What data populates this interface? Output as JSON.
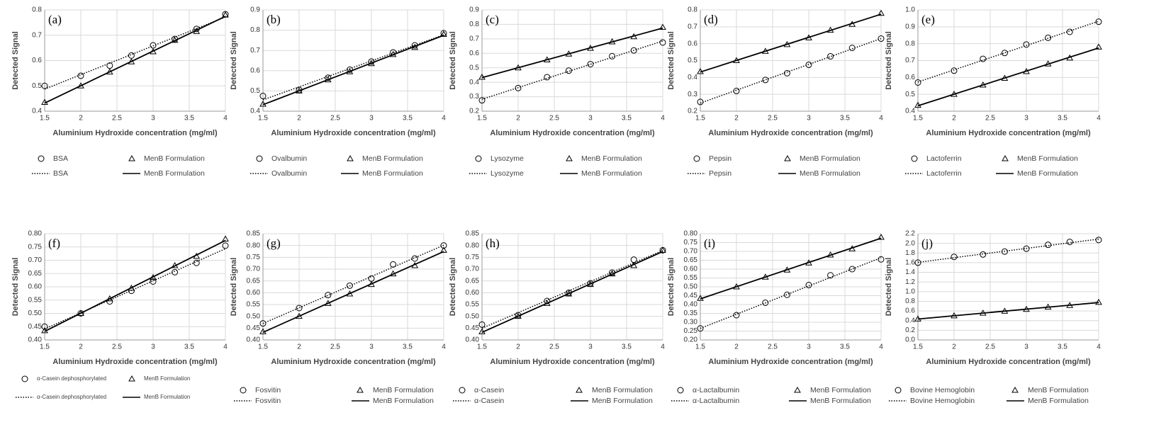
{
  "chart_data": [
    {
      "type": "line",
      "label": "(a)",
      "x_label": "Aluminium Hydroxide concentration (mg/ml)",
      "y_label": "Detected Signal",
      "x": [
        1.5,
        2,
        2.4,
        2.7,
        3,
        3.3,
        3.6,
        4
      ],
      "xlim": [
        1.5,
        4
      ],
      "xticks": [
        1.5,
        2,
        2.5,
        3,
        3.5,
        4
      ],
      "ylim": [
        0.4,
        0.8
      ],
      "yticks": [
        0.4,
        0.5,
        0.6,
        0.7,
        0.8
      ],
      "grid": true,
      "series": [
        {
          "name": "BSA",
          "color": "#000000",
          "marker": "circle",
          "trendline": "dotted",
          "values": [
            0.5,
            0.54,
            0.58,
            0.62,
            0.66,
            0.685,
            0.725,
            0.783
          ]
        },
        {
          "name": "MenB Formulation",
          "color": "#000000",
          "marker": "triangle",
          "trendline": "solid",
          "values": [
            0.435,
            0.5,
            0.555,
            0.595,
            0.635,
            0.68,
            0.715,
            0.78
          ]
        }
      ]
    },
    {
      "type": "line",
      "label": "(b)",
      "x_label": "Aluminium Hydroxide concentration (mg/ml)",
      "y_label": "Detected Signal",
      "x": [
        1.5,
        2,
        2.4,
        2.7,
        3,
        3.3,
        3.6,
        4
      ],
      "xlim": [
        1.5,
        4
      ],
      "xticks": [
        1.5,
        2,
        2.5,
        3,
        3.5,
        4
      ],
      "ylim": [
        0.4,
        0.9
      ],
      "yticks": [
        0.4,
        0.5,
        0.6,
        0.7,
        0.8,
        0.9
      ],
      "grid": true,
      "series": [
        {
          "name": "Ovalbumin",
          "color": "#000000",
          "marker": "circle",
          "trendline": "dotted",
          "values": [
            0.475,
            0.505,
            0.565,
            0.605,
            0.645,
            0.69,
            0.725,
            0.785
          ]
        },
        {
          "name": "MenB Formulation",
          "color": "#000000",
          "marker": "triangle",
          "trendline": "solid",
          "values": [
            0.435,
            0.5,
            0.555,
            0.595,
            0.635,
            0.68,
            0.715,
            0.78
          ]
        }
      ]
    },
    {
      "type": "line",
      "label": "(c)",
      "x_label": "Aluminium Hydroxide concentration (mg/ml)",
      "y_label": "Detected Signal",
      "x": [
        1.5,
        2,
        2.4,
        2.7,
        3,
        3.3,
        3.6,
        4
      ],
      "xlim": [
        1.5,
        4
      ],
      "xticks": [
        1.5,
        2,
        2.5,
        3,
        3.5,
        4
      ],
      "ylim": [
        0.2,
        0.9
      ],
      "yticks": [
        0.2,
        0.3,
        0.4,
        0.5,
        0.6,
        0.7,
        0.8,
        0.9
      ],
      "grid": true,
      "series": [
        {
          "name": "Lysozyme",
          "color": "#000000",
          "marker": "circle",
          "trendline": "dotted",
          "values": [
            0.275,
            0.36,
            0.435,
            0.48,
            0.525,
            0.58,
            0.62,
            0.675
          ]
        },
        {
          "name": "MenB Formulation",
          "color": "#000000",
          "marker": "triangle",
          "trendline": "solid",
          "values": [
            0.435,
            0.5,
            0.555,
            0.595,
            0.635,
            0.68,
            0.715,
            0.78
          ]
        }
      ]
    },
    {
      "type": "line",
      "label": "(d)",
      "x_label": "Aluminium Hydroxide concentration (mg/ml)",
      "y_label": "Detected Signal",
      "x": [
        1.5,
        2,
        2.4,
        2.7,
        3,
        3.3,
        3.6,
        4
      ],
      "xlim": [
        1.5,
        4
      ],
      "xticks": [
        1.5,
        2,
        2.5,
        3,
        3.5,
        4
      ],
      "ylim": [
        0.2,
        0.8
      ],
      "yticks": [
        0.2,
        0.3,
        0.4,
        0.5,
        0.6,
        0.7,
        0.8
      ],
      "grid": true,
      "series": [
        {
          "name": "Pepsin",
          "color": "#000000",
          "marker": "circle",
          "trendline": "dotted",
          "values": [
            0.255,
            0.32,
            0.385,
            0.425,
            0.475,
            0.525,
            0.575,
            0.63
          ]
        },
        {
          "name": "MenB Formulation",
          "color": "#000000",
          "marker": "triangle",
          "trendline": "solid",
          "values": [
            0.435,
            0.5,
            0.555,
            0.595,
            0.635,
            0.68,
            0.715,
            0.78
          ]
        }
      ]
    },
    {
      "type": "line",
      "label": "(e)",
      "x_label": "Aluminium Hydroxide concentration (mg/ml)",
      "y_label": "Detected Signal",
      "x": [
        1.5,
        2,
        2.4,
        2.7,
        3,
        3.3,
        3.6,
        4
      ],
      "xlim": [
        1.5,
        4
      ],
      "xticks": [
        1.5,
        2,
        2.5,
        3,
        3.5,
        4
      ],
      "ylim": [
        0.4,
        1.0
      ],
      "yticks": [
        0.4,
        0.5,
        0.6,
        0.7,
        0.8,
        0.9,
        {
          "value": 1.0,
          "label": "1.0"
        }
      ],
      "grid": true,
      "series": [
        {
          "name": "Lactoferrin",
          "color": "#000000",
          "marker": "circle",
          "trendline": "dotted",
          "values": [
            0.57,
            0.64,
            0.71,
            0.745,
            0.795,
            0.835,
            0.87,
            0.93
          ]
        },
        {
          "name": "MenB Formulation",
          "color": "#000000",
          "marker": "triangle",
          "trendline": "solid",
          "values": [
            0.435,
            0.5,
            0.555,
            0.595,
            0.635,
            0.68,
            0.715,
            0.78
          ]
        }
      ]
    },
    {
      "type": "line",
      "label": "(f)",
      "x_label": "Aluminium Hydroxide concentration (mg/ml)",
      "y_label": "Detected Signal",
      "x": [
        1.5,
        2,
        2.4,
        2.7,
        3,
        3.3,
        3.6,
        4
      ],
      "xlim": [
        1.5,
        4
      ],
      "xticks": [
        1.5,
        2,
        2.5,
        3,
        3.5,
        4
      ],
      "ylim": [
        0.4,
        0.8
      ],
      "yticks": [
        {
          "value": 0.4,
          "label": "0.40"
        },
        {
          "value": 0.45,
          "label": "0.45"
        },
        {
          "value": 0.5,
          "label": "0.50"
        },
        {
          "value": 0.55,
          "label": "0.55"
        },
        {
          "value": 0.6,
          "label": "0.60"
        },
        {
          "value": 0.65,
          "label": "0.65"
        },
        {
          "value": 0.7,
          "label": "0.70"
        },
        {
          "value": 0.75,
          "label": "0.75"
        },
        {
          "value": 0.8,
          "label": "0.80"
        }
      ],
      "grid": true,
      "series": [
        {
          "name": "α-Casein dephosphorylated",
          "color": "#000000",
          "marker": "circle",
          "trendline": "dotted",
          "values": [
            0.45,
            0.5,
            0.545,
            0.585,
            0.62,
            0.655,
            0.69,
            0.755
          ]
        },
        {
          "name": "MenB Formulation",
          "color": "#000000",
          "marker": "triangle",
          "trendline": "solid",
          "values": [
            0.435,
            0.5,
            0.555,
            0.595,
            0.635,
            0.68,
            0.715,
            0.78
          ]
        }
      ]
    },
    {
      "type": "line",
      "label": "(g)",
      "x_label": "Aluminium Hydroxide concentration (mg/ml)",
      "y_label": "Detected Signal",
      "x": [
        1.5,
        2,
        2.4,
        2.7,
        3,
        3.3,
        3.6,
        4
      ],
      "xlim": [
        1.5,
        4
      ],
      "xticks": [
        1.5,
        2,
        2.5,
        3,
        3.5,
        4
      ],
      "ylim": [
        0.4,
        0.85
      ],
      "yticks": [
        {
          "value": 0.4,
          "label": "0.40"
        },
        {
          "value": 0.45,
          "label": "0.45"
        },
        {
          "value": 0.5,
          "label": "0.50"
        },
        {
          "value": 0.55,
          "label": "0.55"
        },
        {
          "value": 0.6,
          "label": "0.60"
        },
        {
          "value": 0.65,
          "label": "0.65"
        },
        {
          "value": 0.7,
          "label": "0.70"
        },
        {
          "value": 0.75,
          "label": "0.75"
        },
        {
          "value": 0.8,
          "label": "0.80"
        },
        {
          "value": 0.85,
          "label": "0.85"
        }
      ],
      "grid": true,
      "series": [
        {
          "name": "Fosvitin",
          "color": "#000000",
          "marker": "circle",
          "trendline": "dotted",
          "values": [
            0.47,
            0.535,
            0.59,
            0.63,
            0.66,
            0.72,
            0.745,
            0.8
          ]
        },
        {
          "name": "MenB Formulation",
          "color": "#000000",
          "marker": "triangle",
          "trendline": "solid",
          "values": [
            0.435,
            0.5,
            0.555,
            0.595,
            0.635,
            0.68,
            0.715,
            0.78
          ]
        }
      ]
    },
    {
      "type": "line",
      "label": "(h)",
      "x_label": "Aluminium Hydroxide concentration (mg/ml)",
      "y_label": "Detected Signal",
      "x": [
        1.5,
        2,
        2.4,
        2.7,
        3,
        3.3,
        3.6,
        4
      ],
      "xlim": [
        1.5,
        4
      ],
      "xticks": [
        1.5,
        2,
        2.5,
        3,
        3.5,
        4
      ],
      "ylim": [
        0.4,
        0.85
      ],
      "yticks": [
        {
          "value": 0.4,
          "label": "0.40"
        },
        {
          "value": 0.45,
          "label": "0.45"
        },
        {
          "value": 0.5,
          "label": "0.50"
        },
        {
          "value": 0.55,
          "label": "0.55"
        },
        {
          "value": 0.6,
          "label": "0.60"
        },
        {
          "value": 0.65,
          "label": "0.65"
        },
        {
          "value": 0.7,
          "label": "0.70"
        },
        {
          "value": 0.75,
          "label": "0.75"
        },
        {
          "value": 0.8,
          "label": "0.80"
        },
        {
          "value": 0.85,
          "label": "0.85"
        }
      ],
      "grid": true,
      "series": [
        {
          "name": "α-Casein",
          "color": "#000000",
          "marker": "circle",
          "trendline": "dotted",
          "values": [
            0.465,
            0.505,
            0.565,
            0.6,
            0.64,
            0.685,
            0.74,
            0.78
          ]
        },
        {
          "name": "MenB Formulation",
          "color": "#000000",
          "marker": "triangle",
          "trendline": "solid",
          "values": [
            0.435,
            0.5,
            0.555,
            0.595,
            0.635,
            0.68,
            0.715,
            0.78
          ]
        }
      ]
    },
    {
      "type": "line",
      "label": "(i)",
      "x_label": "Aluminium Hydroxide concentration (mg/ml)",
      "y_label": "Detected Signal",
      "x": [
        1.5,
        2,
        2.4,
        2.7,
        3,
        3.3,
        3.6,
        4
      ],
      "xlim": [
        1.5,
        4
      ],
      "xticks": [
        1.5,
        2,
        2.5,
        3,
        3.5,
        4
      ],
      "ylim": [
        0.2,
        0.8
      ],
      "yticks": [
        {
          "value": 0.2,
          "label": "0.20"
        },
        {
          "value": 0.25,
          "label": "0.25"
        },
        {
          "value": 0.3,
          "label": "0.30"
        },
        {
          "value": 0.35,
          "label": "0.35"
        },
        {
          "value": 0.4,
          "label": "0.40"
        },
        {
          "value": 0.45,
          "label": "0.45"
        },
        {
          "value": 0.5,
          "label": "0.50"
        },
        {
          "value": 0.55,
          "label": "0.55"
        },
        {
          "value": 0.6,
          "label": "0.60"
        },
        {
          "value": 0.65,
          "label": "0.65"
        },
        {
          "value": 0.7,
          "label": "0.70"
        },
        {
          "value": 0.75,
          "label": "0.75"
        },
        {
          "value": 0.8,
          "label": "0.80"
        }
      ],
      "grid": true,
      "series": [
        {
          "name": "α-Lactalbumin",
          "color": "#000000",
          "marker": "circle",
          "trendline": "dotted",
          "values": [
            0.265,
            0.34,
            0.41,
            0.455,
            0.51,
            0.565,
            0.6,
            0.655
          ]
        },
        {
          "name": "MenB Formulation",
          "color": "#000000",
          "marker": "triangle",
          "trendline": "solid",
          "values": [
            0.435,
            0.5,
            0.555,
            0.595,
            0.635,
            0.68,
            0.715,
            0.78
          ]
        }
      ]
    },
    {
      "type": "line",
      "label": "(j)",
      "x_label": "Aluminium Hydroxide concentration (mg/ml)",
      "y_label": "Detected Signal",
      "x": [
        1.5,
        2,
        2.4,
        2.7,
        3,
        3.3,
        3.6,
        4
      ],
      "xlim": [
        1.5,
        4
      ],
      "xticks": [
        1.5,
        2,
        2.5,
        3,
        3.5,
        4
      ],
      "ylim": [
        0.0,
        2.2
      ],
      "yticks": [
        {
          "value": 0.0,
          "label": "0.0"
        },
        0.2,
        0.4,
        0.6,
        0.8,
        {
          "value": 1.0,
          "label": "1.0"
        },
        1.2,
        1.4,
        1.6,
        1.8,
        {
          "value": 2.0,
          "label": "2.0"
        },
        2.2
      ],
      "grid": true,
      "series": [
        {
          "name": "Bovine Hemoglobin",
          "color": "#000000",
          "marker": "circle",
          "trendline": "dotted",
          "values": [
            1.6,
            1.72,
            1.77,
            1.83,
            1.89,
            1.97,
            2.03,
            2.07
          ]
        },
        {
          "name": "MenB Formulation",
          "color": "#000000",
          "marker": "triangle",
          "trendline": "solid",
          "values": [
            0.435,
            0.5,
            0.555,
            0.595,
            0.635,
            0.68,
            0.715,
            0.78
          ]
        }
      ]
    }
  ]
}
